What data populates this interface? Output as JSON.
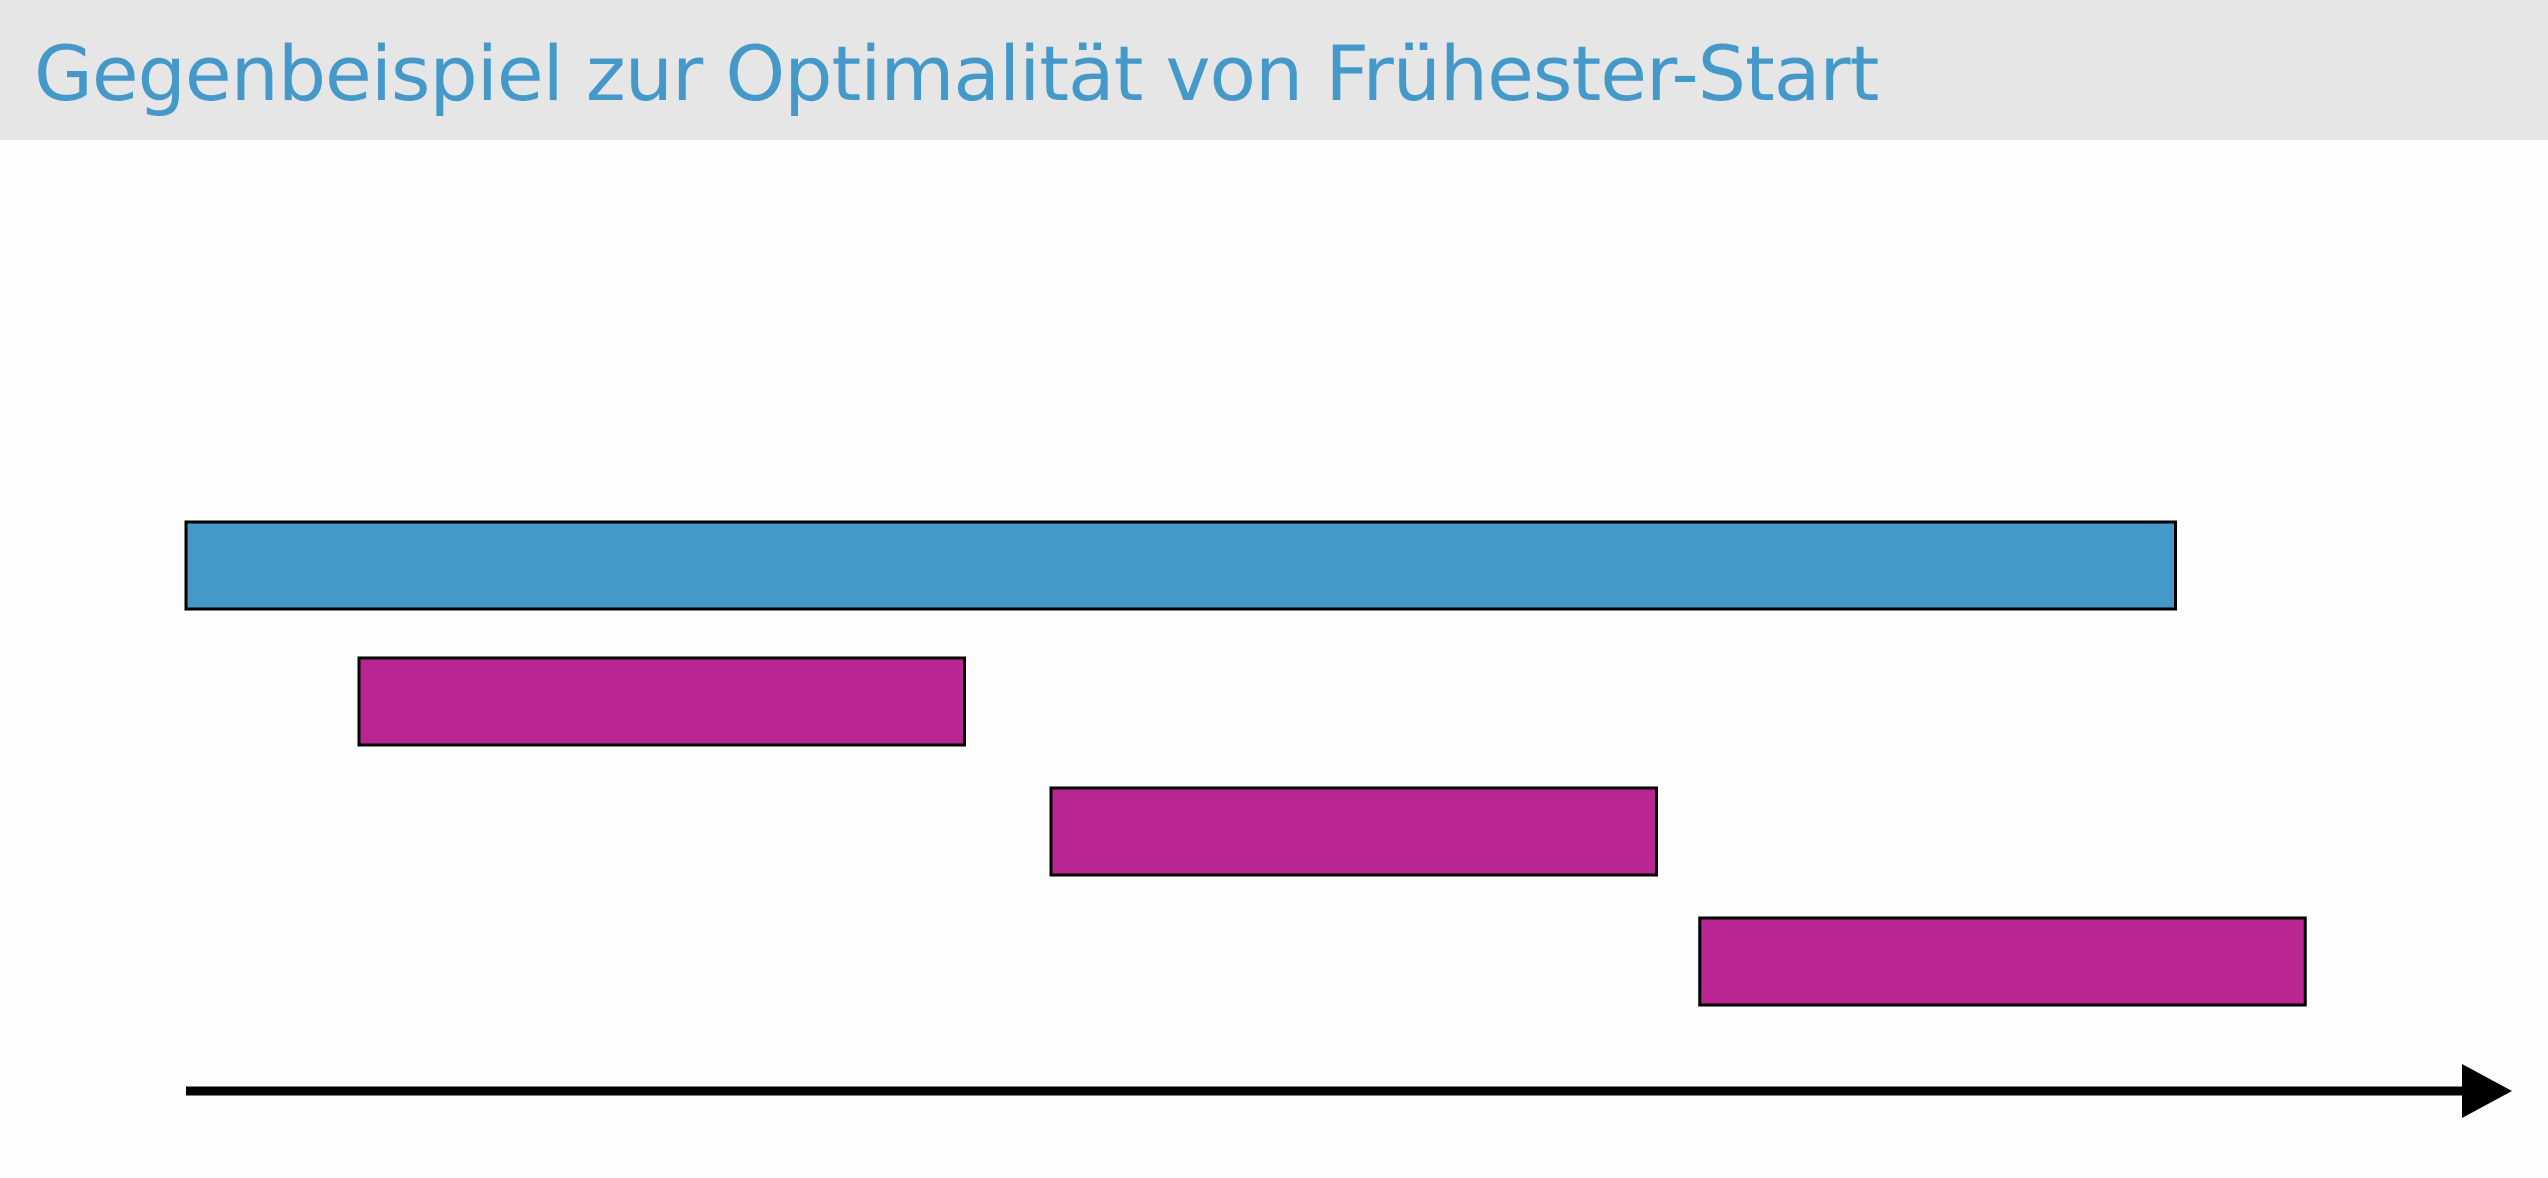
{
  "slide": {
    "title": "Gegenbeispiel zur Optimalität von Frühester-Start"
  },
  "colors": {
    "title_text": "#4499c9",
    "title_bar_background": "#e6e6e6",
    "long_interval": "#4499c9",
    "short_interval": "#b92692",
    "outline": "#000000",
    "timeline_axis": "#000000"
  },
  "diagram": {
    "type": "interval-scheduling-counterexample",
    "timeline": {
      "label": "",
      "direction": "right",
      "start": 0,
      "end": 14
    },
    "intervals": [
      {
        "id": "long",
        "role": "earliest-start",
        "start": 0,
        "end": 11.5,
        "color": "#4499c9"
      },
      {
        "id": "short-1",
        "role": "short",
        "start": 1,
        "end": 4.5,
        "color": "#b92692"
      },
      {
        "id": "short-2",
        "role": "short",
        "start": 5,
        "end": 8.5,
        "color": "#b92692"
      },
      {
        "id": "short-3",
        "role": "short",
        "start": 8.75,
        "end": 12.25,
        "color": "#b92692"
      }
    ]
  }
}
